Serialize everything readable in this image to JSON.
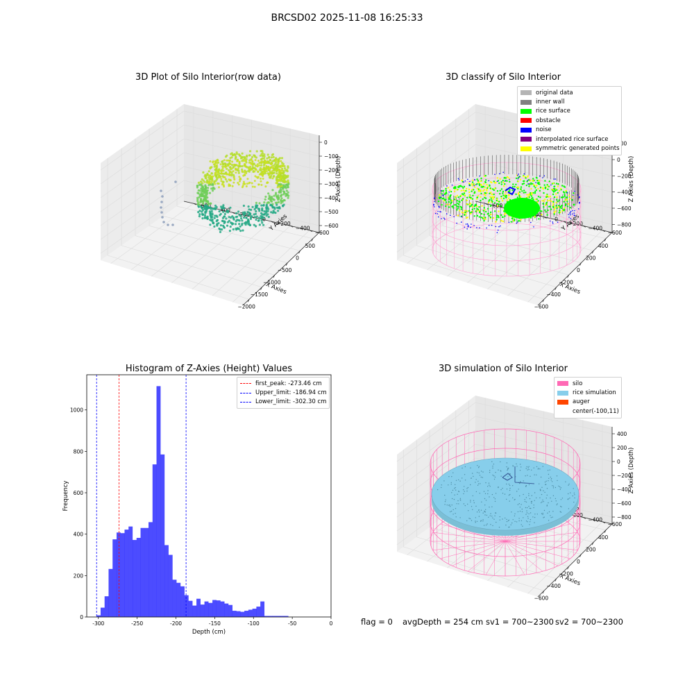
{
  "suptitle": "BRCSD02 2025-11-08 16:25:33",
  "chart_data": [
    {
      "type": "scatter",
      "projection": "3d",
      "title": "3D Plot of Silo Interior(row data)",
      "xlabel": "X Axies",
      "ylabel": "Y Axies",
      "zlabel": "Z Axies (Depth)",
      "x_ticks": [
        "−2000",
        "−1500",
        "−1000",
        "−500",
        "0",
        "500"
      ],
      "y_ticks": [
        "−600",
        "−400",
        "−200",
        "0",
        "200",
        "400",
        "600"
      ],
      "z_ticks": [
        "0",
        "−100",
        "−200",
        "−300",
        "−400",
        "−500",
        "−600"
      ],
      "colormap": "viridis",
      "grid": true
    },
    {
      "type": "scatter",
      "projection": "3d",
      "title": "3D classify of Silo Interior",
      "xlabel": "X Axies",
      "ylabel": "Y Axies",
      "zlabel": "Z Axies (Depth)",
      "x_ticks": [
        "−600",
        "−400",
        "−200",
        "0",
        "200",
        "400"
      ],
      "y_ticks": [
        "−600",
        "−400",
        "−200",
        "0",
        "200",
        "400",
        "600"
      ],
      "z_ticks": [
        "200",
        "0",
        "−200",
        "−400",
        "−600",
        "−800"
      ],
      "z_top_tick_partial": "00",
      "legend_position": "top-right",
      "legend": [
        {
          "label": "original data",
          "color": "#b4b4b4"
        },
        {
          "label": "inner wall",
          "color": "#808080"
        },
        {
          "label": "rice surface",
          "color": "#00ff00"
        },
        {
          "label": "obstacle",
          "color": "#ff0000"
        },
        {
          "label": "noise",
          "color": "#0000ff"
        },
        {
          "label": "interpolated rice surface",
          "color": "#800080"
        },
        {
          "label": "symmetric generated points",
          "color": "#ffff00"
        }
      ],
      "grid": true
    },
    {
      "type": "bar",
      "title": "Histogram of Z-Axies (Height) Values",
      "xlabel": "Depth (cm)",
      "ylabel": "Frequency",
      "xlim": [
        -315,
        0
      ],
      "ylim": [
        0,
        1170
      ],
      "x_ticks": [
        -300,
        -250,
        -200,
        -150,
        -100,
        -50,
        0
      ],
      "y_ticks": [
        0,
        200,
        400,
        600,
        800,
        1000
      ],
      "bin_start": -302.3,
      "bin_width": 5.15,
      "values": [
        8,
        45,
        100,
        232,
        375,
        408,
        405,
        422,
        437,
        372,
        382,
        430,
        430,
        458,
        737,
        1115,
        785,
        347,
        300,
        180,
        165,
        148,
        105,
        78,
        55,
        88,
        60,
        75,
        68,
        82,
        80,
        75,
        65,
        58,
        30,
        28,
        25,
        30,
        35,
        40,
        50,
        75,
        5,
        5,
        5,
        5,
        5,
        5
      ],
      "color": "#0000ff",
      "vlines": [
        {
          "label": "first_peak: -273.46 cm",
          "x": -273.46,
          "color": "#ff0000"
        },
        {
          "label": "Upper_limit: -186.94 cm",
          "x": -186.94,
          "color": "#0000ff"
        },
        {
          "label": "Lower_limit: -302.30 cm",
          "x": -302.3,
          "color": "#0000ff"
        }
      ],
      "legend_position": "top-right"
    },
    {
      "type": "scatter",
      "projection": "3d",
      "title": "3D simulation of Silo Interior",
      "xlabel": "X Axies",
      "ylabel": "Y Axies",
      "zlabel": "Z Axies (Depth)",
      "x_ticks": [
        "−600",
        "−400",
        "−200",
        "0",
        "200",
        "400"
      ],
      "y_ticks": [
        "−600",
        "−400",
        "−200",
        "0",
        "200",
        "400",
        "600"
      ],
      "z_ticks": [
        "400",
        "200",
        "0",
        "−200",
        "−400",
        "−600",
        "−800"
      ],
      "legend_position": "top-right",
      "legend": [
        {
          "label": "silo",
          "color": "#ff69b4"
        },
        {
          "label": "rice simulation",
          "color": "#87ceeb"
        },
        {
          "label": "auger",
          "color": "#ff4500"
        },
        {
          "label": "center(-100,11)",
          "color": ""
        }
      ],
      "grid": true
    }
  ],
  "footer": {
    "flag": "flag = 0",
    "avg": "avgDepth = 254 cm",
    "sv1": "sv1 = 700~2300",
    "sv2": "sv2 = 700~2300"
  },
  "colors": {
    "pink": "#ff69b4",
    "sky": "#87ceeb",
    "bar": "#0000ff",
    "grid": "#dddddd",
    "pane": "#f2f2f2"
  }
}
